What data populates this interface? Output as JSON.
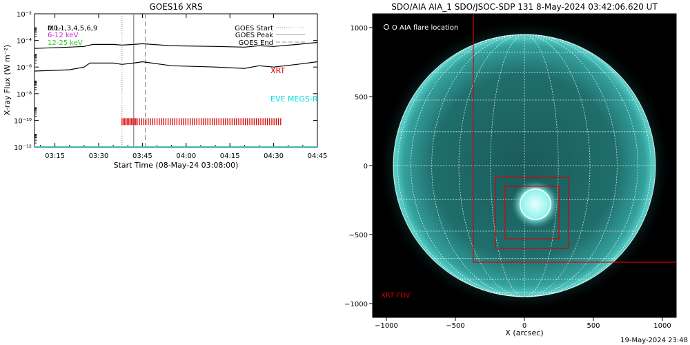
{
  "chart_data": [
    {
      "type": "line",
      "title": "GOES16 XRS",
      "xlabel": "Start Time (08-May-24 03:08:00)",
      "ylabel": "X-ray Flux (W m⁻²)",
      "y_scale": "log",
      "ylim": [
        1e-12,
        0.01
      ],
      "y_ticks": [
        "10⁻¹²",
        "10⁻¹⁰",
        "10⁻⁸",
        "10⁻⁶",
        "10⁻⁴",
        "10⁻²"
      ],
      "y_tick_exponents": [
        -12,
        -10,
        -8,
        -6,
        -4,
        -2
      ],
      "xlim": [
        "03:08",
        "04:45"
      ],
      "x_ticks": [
        "03:15",
        "03:30",
        "03:45",
        "04:00",
        "04:15",
        "04:30",
        "04:45"
      ],
      "legend_left": [
        {
          "text": "0.1-",
          "color": "#000000"
        },
        {
          "text": "M0,1,3,4,5,6,9",
          "color": "#000000"
        },
        {
          "text": "6-12 keV",
          "color": "#cc22cc"
        },
        {
          "text": "12-25 keV",
          "color": "#22cc22"
        }
      ],
      "legend_right": [
        {
          "text": "GOES Start",
          "style": "dotted",
          "color": "#999999"
        },
        {
          "text": "GOES Peak",
          "style": "solid",
          "color": "#999999"
        },
        {
          "text": "GOES End",
          "style": "dashed",
          "color": "#999999"
        }
      ],
      "series": [
        {
          "color": "#000000",
          "x": [
            "03:08",
            "03:20",
            "03:25",
            "03:28",
            "03:35",
            "03:38",
            "03:42",
            "03:45",
            "03:55",
            "04:10",
            "04:20",
            "04:25",
            "04:30",
            "04:38",
            "04:45"
          ],
          "y_exp": [
            -4.6,
            -4.5,
            -4.45,
            -4.3,
            -4.3,
            -4.35,
            -4.3,
            -4.25,
            -4.4,
            -4.45,
            -4.5,
            -4.4,
            -4.45,
            -4.3,
            -4.15
          ]
        },
        {
          "color": "#000000",
          "x": [
            "03:08",
            "03:20",
            "03:25",
            "03:27",
            "03:35",
            "03:38",
            "03:42",
            "03:45",
            "03:55",
            "04:10",
            "04:20",
            "04:25",
            "04:30",
            "04:38",
            "04:45"
          ],
          "y_exp": [
            -6.3,
            -6.2,
            -6.0,
            -5.7,
            -5.7,
            -5.8,
            -5.7,
            -5.6,
            -5.9,
            -6.0,
            -6.1,
            -5.9,
            -6.0,
            -5.8,
            -5.6
          ]
        },
        {
          "color": "#00e0e0",
          "x": [
            "03:08",
            "04:45"
          ],
          "y_exp": [
            -12,
            -12
          ]
        }
      ],
      "vlines": [
        {
          "x": "03:38",
          "style": "dotted",
          "color": "#999999"
        },
        {
          "x": "03:42",
          "style": "solid",
          "color": "#999999"
        },
        {
          "x": "03:46",
          "style": "dashed",
          "color": "#999999"
        }
      ],
      "annotations": [
        {
          "text": "XRT",
          "color": "#dd0000"
        },
        {
          "text": "EVE MEGS-R",
          "color": "#00e0e0"
        }
      ],
      "xrt_obs": {
        "color": "#dd0000",
        "start": "03:38",
        "end": "04:33",
        "y_exp": -10.1
      }
    },
    {
      "type": "image",
      "title": "SDO/AIA AIA_1 SDO/JSOC-SDP 131  8-May-2024 03:42:06.620 UT",
      "xlabel": "X (arcsec)",
      "x_ticks": [
        -1000,
        -500,
        0,
        500,
        1000
      ],
      "y_ticks": [
        -1000,
        -500,
        0,
        500,
        1000
      ],
      "xlim": [
        -1100,
        1100
      ],
      "ylim": [
        -1100,
        1100
      ],
      "legend": "O AIA flare location",
      "fov_label": "XRT FOV",
      "timestamp": "19-May-2024 23:48",
      "solar_radius_arcsec": 950,
      "flare_location": {
        "x": 80,
        "y": -280,
        "radius": 110
      },
      "boxes": [
        {
          "x0": -370,
          "x1": 1100,
          "y0": -700,
          "y1": 1100,
          "color": "#dd0000"
        },
        {
          "x0": -210,
          "x1": 320,
          "y0": -600,
          "y1": -85,
          "color": "#dd0000"
        },
        {
          "x0": -140,
          "x1": 250,
          "y0": -530,
          "y1": -150,
          "color": "#dd0000"
        }
      ]
    }
  ]
}
